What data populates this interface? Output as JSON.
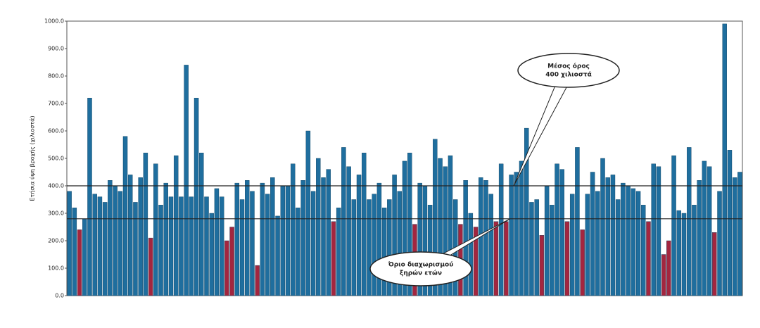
{
  "chart_data": {
    "type": "bar",
    "y_label": "Ετήσια ύψη βροχής (χιλιοστά)",
    "annotations": {
      "mean": [
        "Μέσος όρος",
        "400 χιλιοστά"
      ],
      "dry": [
        "Όριο διαχωρισμού",
        "ξηρών ετών"
      ]
    },
    "mean_line": 400,
    "dry_limit": 280,
    "color": "#1f6e9e",
    "dry_color": "#a3263f",
    "ylim": [
      0,
      1000
    ],
    "yticks": [
      {
        "value": 0,
        "label": "0.0"
      },
      {
        "value": 100,
        "label": "100.0"
      },
      {
        "value": 200,
        "label": "200.0"
      },
      {
        "value": 300,
        "label": "300.0"
      },
      {
        "value": 400,
        "label": "400.0"
      },
      {
        "value": 500,
        "label": "500.0"
      },
      {
        "value": 600,
        "label": "600.0"
      },
      {
        "value": 700,
        "label": "700.0"
      },
      {
        "value": 800,
        "label": "800.0"
      },
      {
        "value": 900,
        "label": "900.0"
      },
      {
        "value": 1000,
        "label": "1000.0"
      }
    ],
    "values": [
      380,
      320,
      240,
      280,
      720,
      370,
      360,
      340,
      420,
      400,
      380,
      580,
      440,
      340,
      430,
      520,
      210,
      480,
      330,
      410,
      360,
      510,
      360,
      840,
      360,
      720,
      520,
      360,
      300,
      390,
      360,
      200,
      250,
      410,
      350,
      420,
      380,
      110,
      410,
      370,
      430,
      290,
      400,
      400,
      480,
      320,
      420,
      600,
      380,
      500,
      430,
      460,
      270,
      320,
      540,
      470,
      350,
      440,
      520,
      350,
      370,
      410,
      320,
      350,
      440,
      380,
      490,
      520,
      260,
      410,
      400,
      330,
      570,
      500,
      470,
      510,
      350,
      260,
      420,
      300,
      250,
      430,
      420,
      370,
      270,
      480,
      270,
      440,
      450,
      490,
      610,
      340,
      350,
      220,
      400,
      330,
      480,
      460,
      270,
      370,
      540,
      240,
      370,
      450,
      380,
      500,
      430,
      440,
      350,
      410,
      400,
      390,
      380,
      330,
      270,
      480,
      470,
      150,
      200,
      510,
      310,
      300,
      540,
      330,
      420,
      490,
      470,
      230,
      380,
      990,
      530,
      430,
      450
    ]
  }
}
